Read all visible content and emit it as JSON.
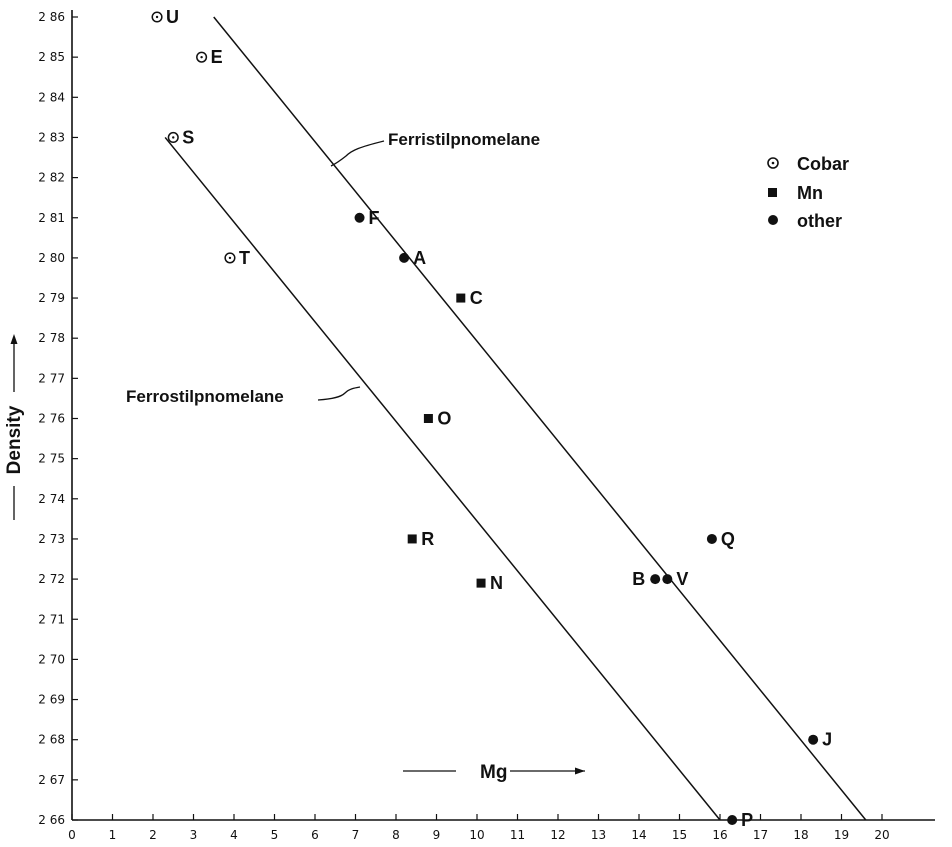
{
  "chart_data": {
    "type": "scatter",
    "title": "",
    "xlabel": "Mg",
    "ylabel": "Density",
    "xlim": [
      0,
      20
    ],
    "ylim": [
      2.66,
      2.86
    ],
    "x_ticks": [
      0,
      1,
      2,
      3,
      4,
      5,
      6,
      7,
      8,
      9,
      10,
      11,
      12,
      13,
      14,
      15,
      16,
      17,
      18,
      19,
      20
    ],
    "y_ticks": [
      2.66,
      2.67,
      2.68,
      2.69,
      2.7,
      2.71,
      2.72,
      2.73,
      2.74,
      2.75,
      2.76,
      2.77,
      2.78,
      2.79,
      2.8,
      2.81,
      2.82,
      2.83,
      2.84,
      2.85,
      2.86
    ],
    "y_tick_labels": [
      "2 66",
      "2 67",
      "2 68",
      "2 69",
      "2 70",
      "2 71",
      "2 72",
      "2 73",
      "2 74",
      "2 75",
      "2 76",
      "2 77",
      "2 78",
      "2 79",
      "2 80",
      "2 81",
      "2 82",
      "2 83",
      "2 84",
      "2 85",
      "2 86"
    ],
    "legend": {
      "placement": "top-right",
      "entries": [
        {
          "name": "Cobar",
          "marker": "dotted-circle"
        },
        {
          "name": "Mn",
          "marker": "square"
        },
        {
          "name": "other",
          "marker": "filled-circle"
        }
      ]
    },
    "series": [
      {
        "name": "Cobar",
        "marker": "dotted-circle",
        "points": [
          {
            "label": "U",
            "x": 2.1,
            "y": 2.86
          },
          {
            "label": "E",
            "x": 3.2,
            "y": 2.85
          },
          {
            "label": "S",
            "x": 2.5,
            "y": 2.83
          },
          {
            "label": "T",
            "x": 3.9,
            "y": 2.8
          }
        ]
      },
      {
        "name": "Mn",
        "marker": "square",
        "points": [
          {
            "label": "C",
            "x": 9.6,
            "y": 2.79
          },
          {
            "label": "O",
            "x": 8.8,
            "y": 2.76
          },
          {
            "label": "R",
            "x": 8.4,
            "y": 2.73
          },
          {
            "label": "N",
            "x": 10.1,
            "y": 2.719
          }
        ]
      },
      {
        "name": "other",
        "marker": "filled-circle",
        "points": [
          {
            "label": "F",
            "x": 7.1,
            "y": 2.81
          },
          {
            "label": "A",
            "x": 8.2,
            "y": 2.8
          },
          {
            "label": "Q",
            "x": 15.8,
            "y": 2.73
          },
          {
            "label": "B",
            "x": 14.4,
            "y": 2.72
          },
          {
            "label": "V",
            "x": 14.7,
            "y": 2.72
          },
          {
            "label": "J",
            "x": 18.3,
            "y": 2.68
          },
          {
            "label": "P",
            "x": 16.3,
            "y": 2.66
          }
        ]
      }
    ],
    "trend_lines": [
      {
        "label": "Ferristilpnomelane",
        "from": {
          "x": 3.5,
          "y": 2.86
        },
        "to": {
          "x": 19.6,
          "y": 2.66
        }
      },
      {
        "label": "Ferrostilpnomelane",
        "from": {
          "x": 2.3,
          "y": 2.83
        },
        "to": {
          "x": 16.0,
          "y": 2.66
        }
      }
    ]
  }
}
